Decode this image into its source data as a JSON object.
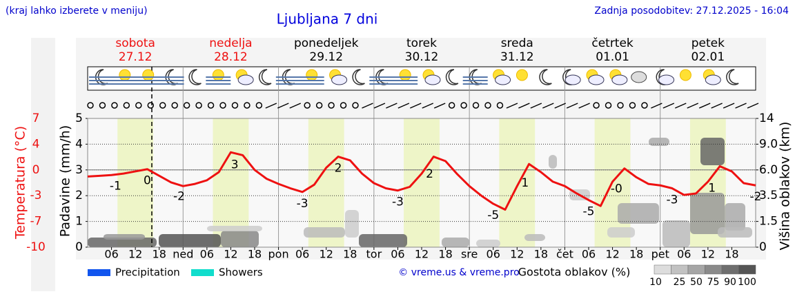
{
  "header": {
    "hint": "(kraj lahko izberete v meniju)",
    "updated": "Zadnja posodobitev: 27.12.2025 - 16:04",
    "credit": "© vreme.us & vreme.pro"
  },
  "chart_data": {
    "type": "line",
    "title": "Ljubljana 7 dni",
    "x": [
      0,
      3,
      6,
      9,
      12,
      15,
      18,
      21,
      24,
      27,
      30,
      33,
      36,
      39,
      42,
      45,
      48,
      51,
      54,
      57,
      60,
      63,
      66,
      69,
      72,
      75,
      78,
      81,
      84,
      87,
      90,
      93,
      96,
      99,
      102,
      105,
      108,
      111,
      114,
      117,
      120,
      123,
      126,
      129,
      132,
      135,
      138,
      141,
      144,
      147,
      150,
      153,
      156,
      159,
      162,
      165,
      168
    ],
    "values": [
      -0.9,
      -0.8,
      -0.7,
      -0.5,
      -0.2,
      0.1,
      -0.8,
      -1.7,
      -2.2,
      -1.9,
      -1.4,
      -0.3,
      2.4,
      2.0,
      0.0,
      -1.2,
      -1.9,
      -2.5,
      -3.0,
      -2.0,
      0.3,
      1.8,
      1.3,
      -0.5,
      -1.8,
      -2.5,
      -2.8,
      -2.3,
      -0.5,
      1.8,
      1.2,
      -0.6,
      -2.2,
      -3.5,
      -4.6,
      -5.4,
      -2.2,
      0.8,
      -0.3,
      -1.6,
      -2.2,
      -3.2,
      -4.1,
      -4.9,
      -1.6,
      0.2,
      -1.0,
      -1.9,
      -2.1,
      -2.5,
      -3.4,
      -3.2,
      -1.6,
      0.5,
      -0.2,
      -1.8,
      -2.1
    ],
    "color": "#ee1111",
    "xlim": [
      0,
      168
    ],
    "xticks": [
      {
        "value": 6,
        "label": "06"
      },
      {
        "value": 12,
        "label": "12"
      },
      {
        "value": 18,
        "label": "18"
      },
      {
        "value": 24,
        "label": "ned"
      },
      {
        "value": 30,
        "label": "06"
      },
      {
        "value": 36,
        "label": "12"
      },
      {
        "value": 42,
        "label": "18"
      },
      {
        "value": 48,
        "label": "pon"
      },
      {
        "value": 54,
        "label": "06"
      },
      {
        "value": 60,
        "label": "12"
      },
      {
        "value": 66,
        "label": "18"
      },
      {
        "value": 72,
        "label": "tor"
      },
      {
        "value": 78,
        "label": "06"
      },
      {
        "value": 84,
        "label": "12"
      },
      {
        "value": 90,
        "label": "18"
      },
      {
        "value": 96,
        "label": "sre"
      },
      {
        "value": 102,
        "label": "06"
      },
      {
        "value": 108,
        "label": "12"
      },
      {
        "value": 114,
        "label": "18"
      },
      {
        "value": 120,
        "label": "čet"
      },
      {
        "value": 126,
        "label": "06"
      },
      {
        "value": 132,
        "label": "12"
      },
      {
        "value": 138,
        "label": "18"
      },
      {
        "value": 144,
        "label": "pet"
      },
      {
        "value": 150,
        "label": "06"
      },
      {
        "value": 156,
        "label": "12"
      },
      {
        "value": 162,
        "label": "18"
      }
    ],
    "ylabel": "Temperatura (°C)",
    "ylim": [
      -10.5,
      7
    ],
    "yticks": [
      7,
      {
        "value": 3.5,
        "label": "4"
      },
      0,
      {
        "value": -3.5,
        "label": "-3"
      },
      -7,
      {
        "value": -10.5,
        "label": "-10"
      }
    ],
    "y2label": "Padavine (mm/h)",
    "y2lim": [
      0,
      5
    ],
    "y2ticks": [
      0,
      1,
      2,
      3,
      4,
      5
    ],
    "y3label": "Višina oblakov (km)",
    "y3ticks": [
      0,
      1.5,
      3.5,
      {
        "value": 6,
        "label": "6.0"
      },
      {
        "value": 9,
        "label": "9.0"
      },
      14
    ],
    "grid": true,
    "days": [
      {
        "name": "sobota",
        "date": "27.12",
        "color": "#ee1111"
      },
      {
        "name": "nedelja",
        "date": "28.12",
        "color": "#ee1111"
      },
      {
        "name": "ponedeljek",
        "date": "29.12",
        "color": "#000000"
      },
      {
        "name": "torek",
        "date": "30.12",
        "color": "#000000"
      },
      {
        "name": "sreda",
        "date": "31.12",
        "color": "#000000"
      },
      {
        "name": "četrtek",
        "date": "01.01",
        "color": "#000000"
      },
      {
        "name": "petek",
        "date": "02.01",
        "color": "#000000"
      }
    ],
    "temp_labels": [
      {
        "text": "-1",
        "x": 7
      },
      {
        "text": "0",
        "x": 15
      },
      {
        "text": "-2",
        "x": 23
      },
      {
        "text": "3",
        "x": 37
      },
      {
        "text": "-3",
        "x": 54
      },
      {
        "text": "2",
        "x": 63
      },
      {
        "text": "-3",
        "x": 78
      },
      {
        "text": "2",
        "x": 86
      },
      {
        "text": "-5",
        "x": 102
      },
      {
        "text": "1",
        "x": 110
      },
      {
        "text": "-5",
        "x": 126
      },
      {
        "text": "-0",
        "x": 133
      },
      {
        "text": "-3",
        "x": 147
      },
      {
        "text": "1",
        "x": 157
      },
      {
        "text": "-2",
        "x": 168
      }
    ],
    "legend_items": [
      {
        "name": "Precipitation",
        "color": "#1155ee"
      },
      {
        "name": "Showers",
        "color": "#11ddcc"
      }
    ],
    "cloud_legend": {
      "title": "Gostota oblakov (%)",
      "levels": [
        10,
        25,
        50,
        75,
        90,
        100
      ]
    }
  }
}
